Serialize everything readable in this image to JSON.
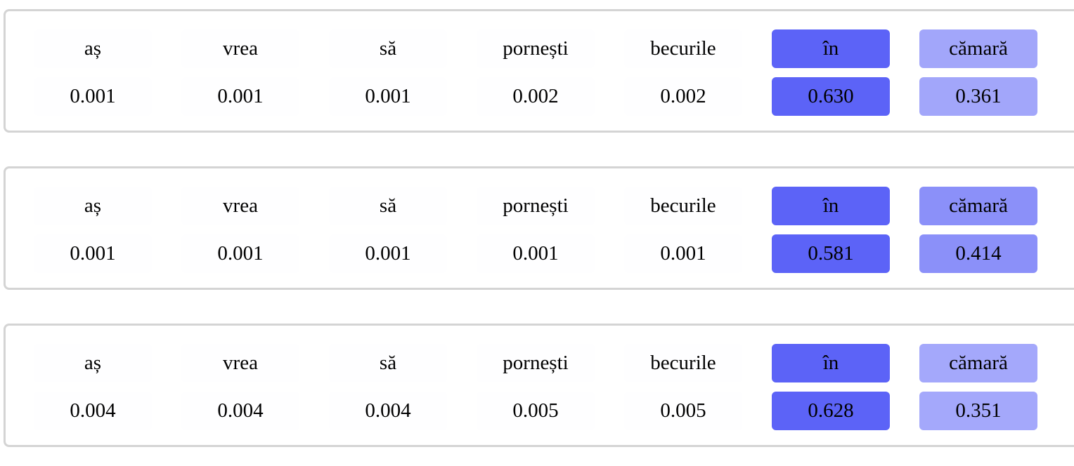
{
  "panels": [
    {
      "tokens": [
        "aș",
        "vrea",
        "să",
        "pornești",
        "becurile",
        "în",
        "cămară"
      ],
      "values": [
        "0.001",
        "0.001",
        "0.001",
        "0.002",
        "0.002",
        "0.630",
        "0.361"
      ],
      "weights": [
        0.001,
        0.001,
        0.001,
        0.002,
        0.002,
        0.63,
        0.361
      ]
    },
    {
      "tokens": [
        "aș",
        "vrea",
        "să",
        "pornești",
        "becurile",
        "în",
        "cămară"
      ],
      "values": [
        "0.001",
        "0.001",
        "0.001",
        "0.001",
        "0.001",
        "0.581",
        "0.414"
      ],
      "weights": [
        0.001,
        0.001,
        0.001,
        0.001,
        0.001,
        0.581,
        0.414
      ]
    },
    {
      "tokens": [
        "aș",
        "vrea",
        "să",
        "pornești",
        "becurile",
        "în",
        "cămară"
      ],
      "values": [
        "0.004",
        "0.004",
        "0.004",
        "0.005",
        "0.005",
        "0.628",
        "0.351"
      ],
      "weights": [
        0.004,
        0.004,
        0.004,
        0.005,
        0.005,
        0.628,
        0.351
      ]
    }
  ],
  "colors": {
    "highlight_rgb": [
      92,
      99,
      247
    ],
    "panel_border": "#d4d4d4"
  }
}
